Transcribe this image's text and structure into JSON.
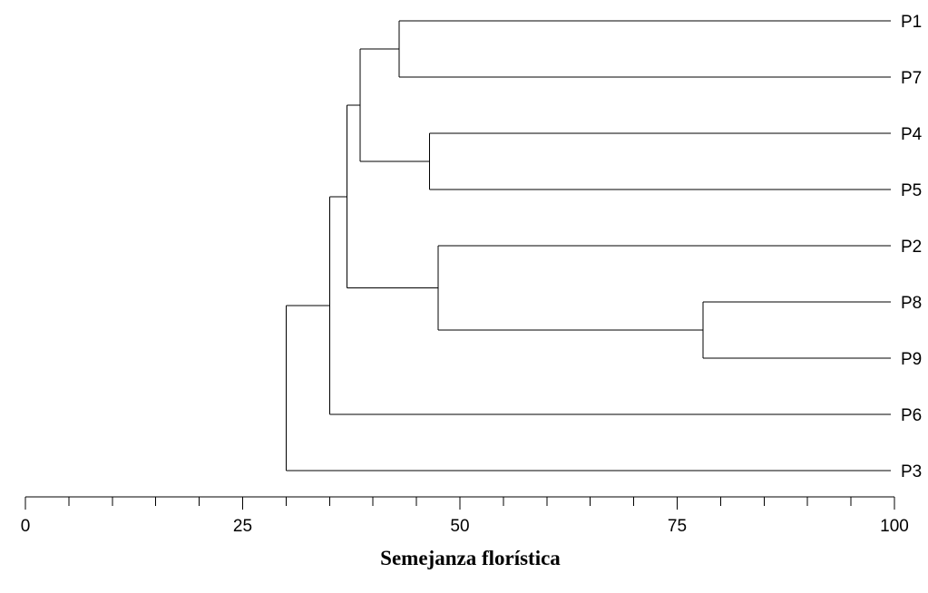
{
  "chart_data": {
    "type": "dendrogram",
    "orientation": "horizontal",
    "leaves": [
      "P1",
      "P7",
      "P4",
      "P5",
      "P2",
      "P8",
      "P9",
      "P6",
      "P3"
    ],
    "merges": [
      {
        "id": "A",
        "children": [
          "P1",
          "P7"
        ],
        "similarity": 43
      },
      {
        "id": "B",
        "children": [
          "P4",
          "P5"
        ],
        "similarity": 46.5
      },
      {
        "id": "C",
        "children": [
          "P8",
          "P9"
        ],
        "similarity": 78
      },
      {
        "id": "D",
        "children": [
          "P2",
          "C"
        ],
        "similarity": 47.5
      },
      {
        "id": "E",
        "children": [
          "A",
          "B"
        ],
        "similarity": 38.5
      },
      {
        "id": "F",
        "children": [
          "E",
          "D"
        ],
        "similarity": 37
      },
      {
        "id": "G",
        "children": [
          "F",
          "P6"
        ],
        "similarity": 35
      },
      {
        "id": "H",
        "children": [
          "G",
          "P3"
        ],
        "similarity": 30
      }
    ],
    "xlim": [
      0,
      100
    ],
    "xticks_major": [
      0,
      25,
      50,
      75,
      100
    ],
    "xticks_minor_step": 5,
    "xlabel": "Semejanza florística",
    "title": "",
    "grid": false
  }
}
